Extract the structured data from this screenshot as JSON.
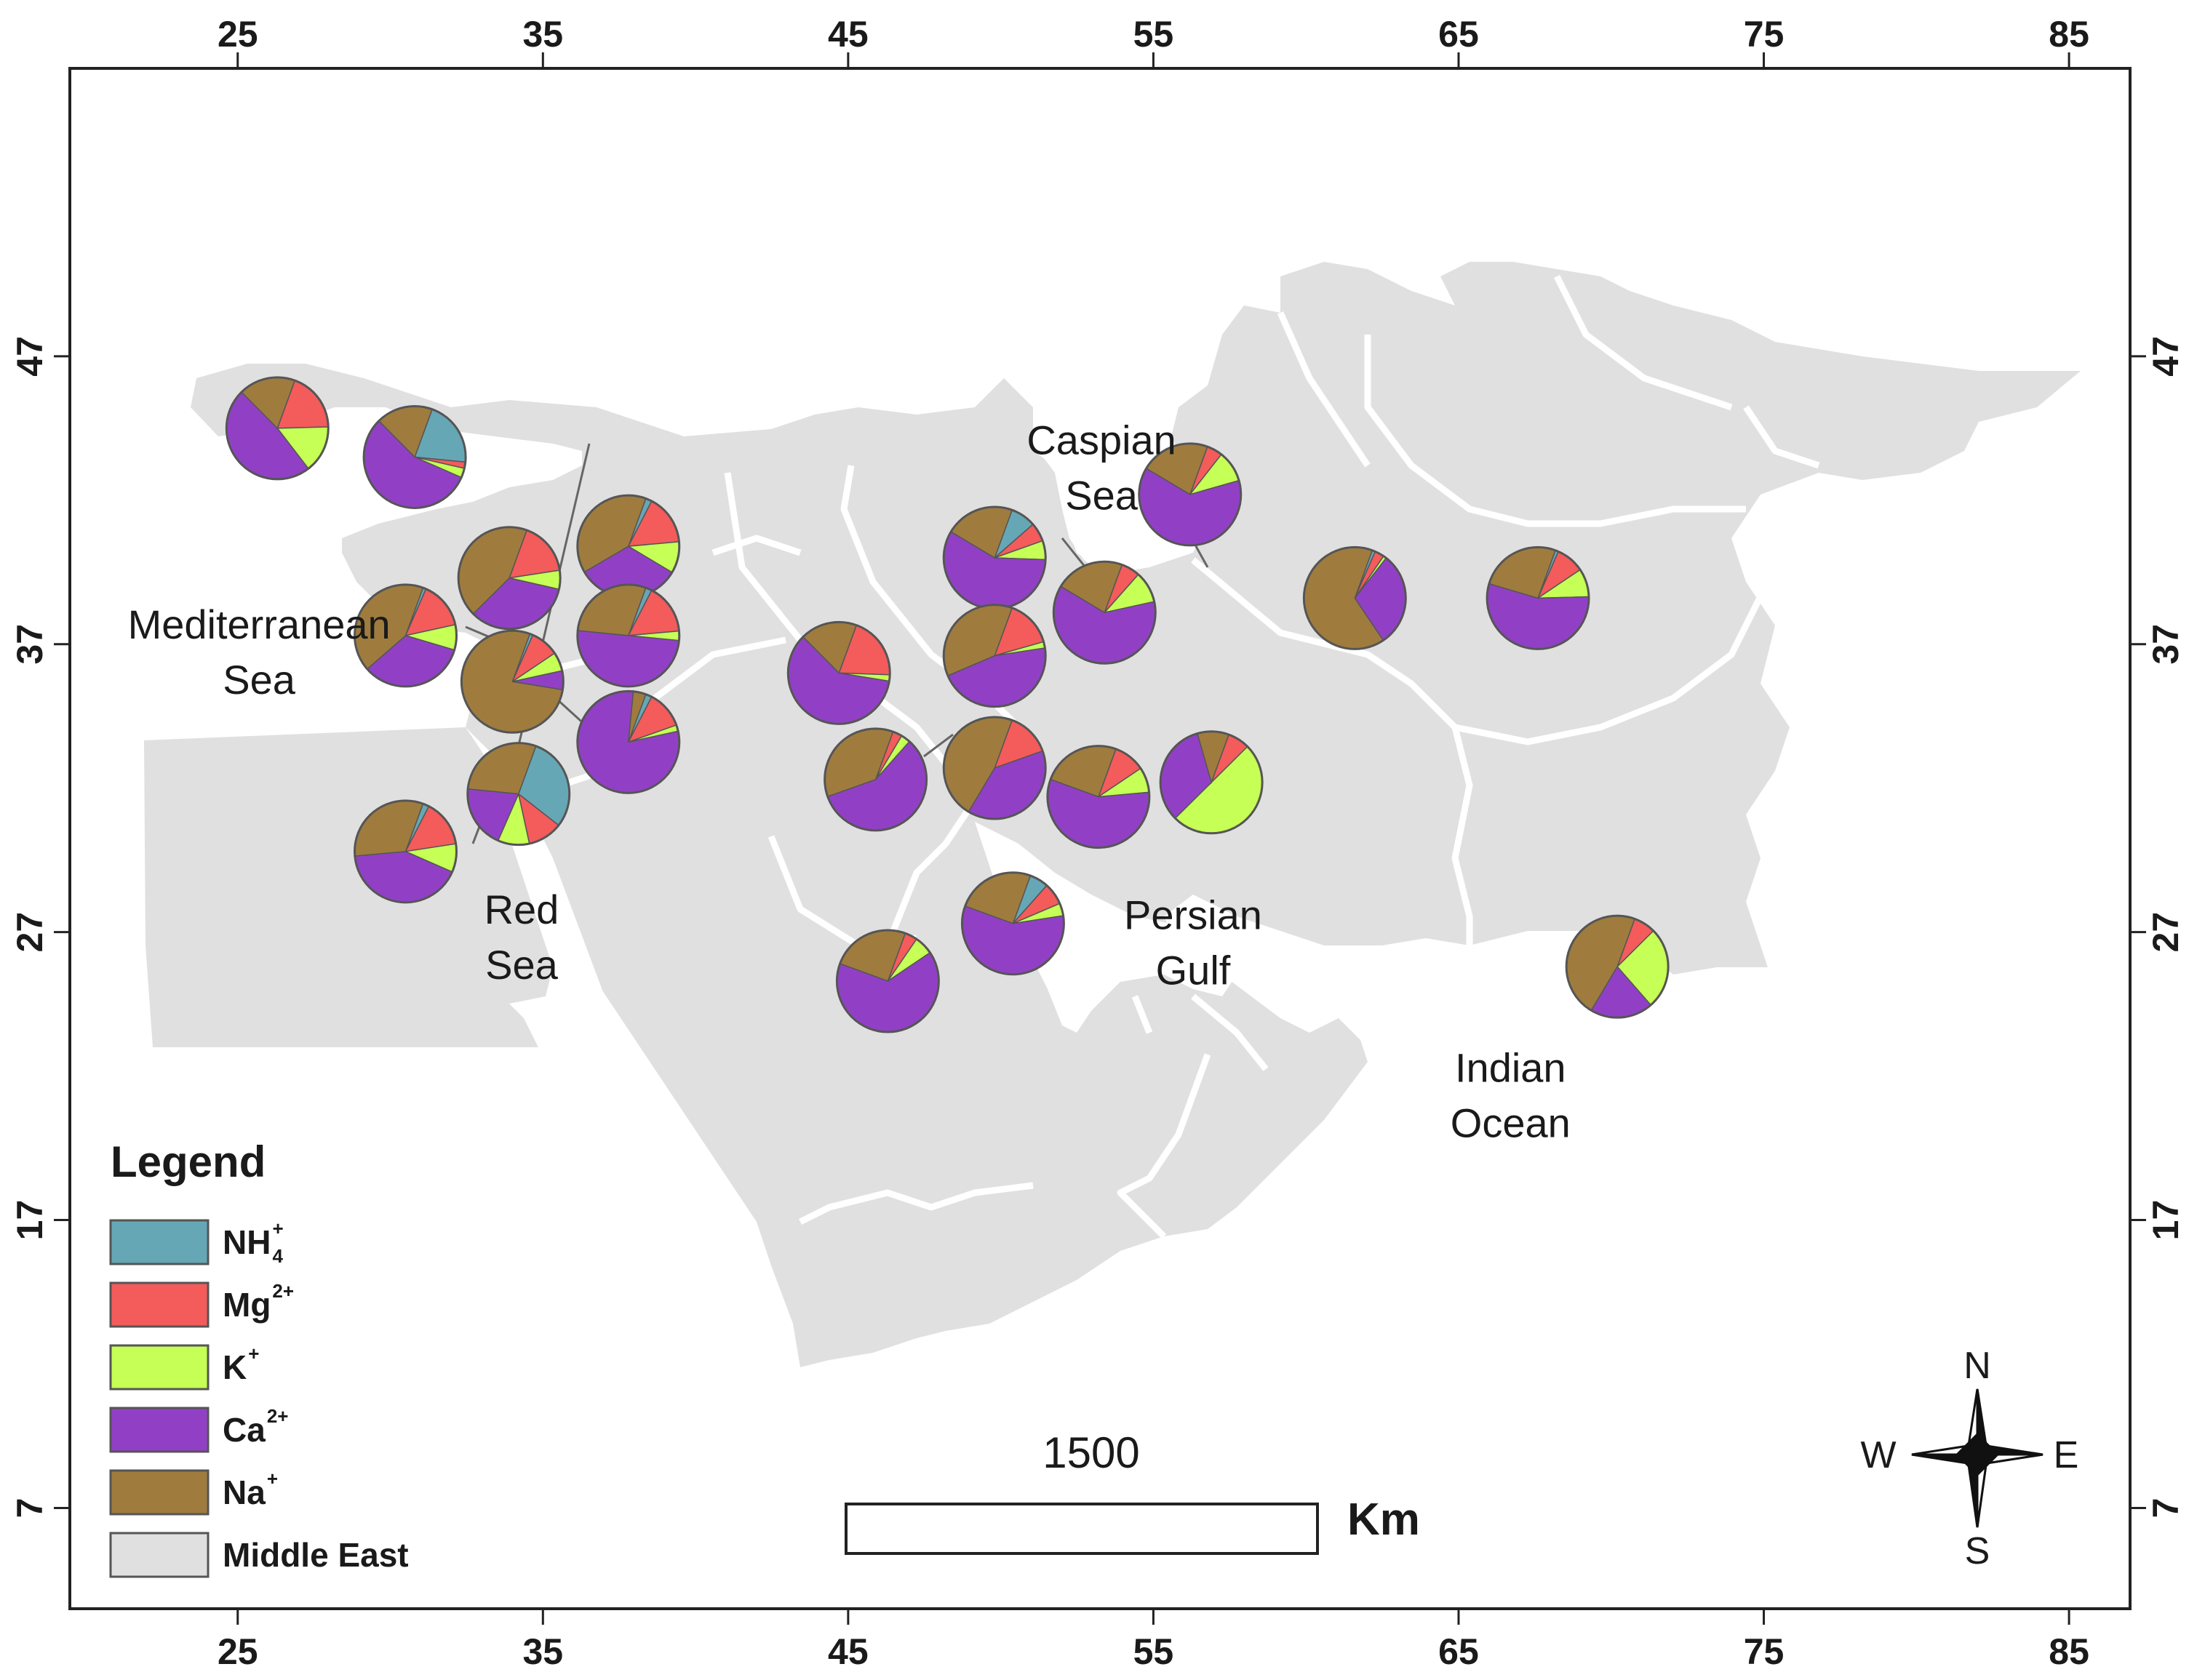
{
  "map": {
    "x_ticks": [
      "25",
      "35",
      "45",
      "55",
      "65",
      "75",
      "85"
    ],
    "y_ticks": [
      "47",
      "37",
      "27",
      "17",
      "7"
    ],
    "x_range": [
      19.5,
      87
    ],
    "y_range": [
      3.5,
      57
    ],
    "land_color": "#e0e0e0",
    "border_color": "#ffffff",
    "places": [
      {
        "id": "caspian",
        "lines": [
          "Caspian",
          "Sea"
        ],
        "lon": 53.3,
        "lat": 43.6
      },
      {
        "id": "mediterranean",
        "lines": [
          "Mediterranean",
          "Sea"
        ],
        "lon": 25.7,
        "lat": 37.2
      },
      {
        "id": "red-sea",
        "lines": [
          "Red",
          "Sea"
        ],
        "lon": 34.3,
        "lat": 27.3
      },
      {
        "id": "persian-gulf",
        "lines": [
          "Persian",
          "Gulf"
        ],
        "lon": 56.3,
        "lat": 27.1
      },
      {
        "id": "indian-ocean",
        "lines": [
          "Indian",
          "Ocean"
        ],
        "lon": 66.7,
        "lat": 21.8
      }
    ]
  },
  "series_colors": {
    "NH4": "#66a7b6",
    "Mg": "#f45b5b",
    "K": "#c6ff55",
    "Ca": "#9140c6",
    "Na": "#9f7c3e"
  },
  "chart_data": {
    "type": "map-pie",
    "order": [
      "NH4",
      "Mg",
      "K",
      "Ca",
      "Na"
    ],
    "sites": [
      {
        "lon": 26.3,
        "lat": 44.5,
        "values": [
          0,
          19,
          15,
          48,
          18
        ]
      },
      {
        "lon": 30.8,
        "lat": 43.5,
        "values": [
          21,
          2,
          3,
          56,
          18
        ]
      },
      {
        "lon": 33.9,
        "lat": 39.3,
        "values": [
          0,
          17,
          6,
          34,
          43
        ]
      },
      {
        "lon": 37.8,
        "lat": 40.4,
        "values": [
          2,
          16,
          10,
          33,
          39
        ]
      },
      {
        "lon": 30.5,
        "lat": 37.3,
        "values": [
          1,
          15,
          8,
          34,
          42
        ]
      },
      {
        "lon": 37.8,
        "lat": 37.3,
        "values": [
          2,
          16,
          3,
          50,
          29
        ]
      },
      {
        "lon": 34.0,
        "lat": 35.7,
        "values": [
          1,
          9,
          6,
          6,
          78
        ]
      },
      {
        "lon": 37.8,
        "lat": 33.6,
        "values": [
          2,
          12,
          2,
          80,
          4
        ]
      },
      {
        "lon": 34.2,
        "lat": 31.8,
        "values": [
          30,
          11,
          10,
          20,
          29
        ]
      },
      {
        "lon": 30.5,
        "lat": 29.8,
        "values": [
          2,
          15,
          9,
          42,
          32
        ]
      },
      {
        "lon": 44.7,
        "lat": 36.0,
        "values": [
          0,
          20,
          2,
          60,
          18
        ]
      },
      {
        "lon": 45.9,
        "lat": 32.3,
        "values": [
          0,
          3,
          3,
          58,
          36
        ]
      },
      {
        "lon": 49.8,
        "lat": 32.7,
        "values": [
          0,
          14,
          0,
          39,
          47
        ]
      },
      {
        "lon": 49.8,
        "lat": 40.0,
        "values": [
          8,
          6,
          6,
          58,
          22
        ]
      },
      {
        "lon": 49.8,
        "lat": 36.6,
        "values": [
          0,
          15,
          2,
          46,
          37
        ]
      },
      {
        "lon": 53.4,
        "lat": 38.1,
        "values": [
          0,
          6,
          10,
          62,
          22
        ]
      },
      {
        "lon": 56.2,
        "lat": 42.2,
        "values": [
          0,
          5,
          10,
          63,
          22
        ]
      },
      {
        "lon": 53.2,
        "lat": 31.7,
        "values": [
          0,
          10,
          8,
          57,
          25
        ]
      },
      {
        "lon": 56.9,
        "lat": 32.2,
        "values": [
          0,
          7,
          50,
          33,
          10
        ]
      },
      {
        "lon": 61.6,
        "lat": 38.6,
        "values": [
          1,
          3,
          1,
          30,
          65
        ]
      },
      {
        "lon": 67.6,
        "lat": 38.6,
        "values": [
          1,
          9,
          9,
          55,
          26
        ]
      },
      {
        "lon": 50.4,
        "lat": 27.3,
        "values": [
          6,
          7,
          4,
          58,
          25
        ]
      },
      {
        "lon": 46.3,
        "lat": 25.3,
        "values": [
          0,
          4,
          6,
          65,
          25
        ]
      },
      {
        "lon": 70.2,
        "lat": 25.8,
        "values": [
          0,
          7,
          26,
          20,
          47
        ]
      }
    ]
  },
  "legend": {
    "title": "Legend",
    "items": [
      {
        "key": "NH4",
        "label": "NH",
        "sub": "4",
        "sup": "+"
      },
      {
        "key": "Mg",
        "label": "Mg",
        "sub": "",
        "sup": "2+"
      },
      {
        "key": "K",
        "label": "K",
        "sub": "",
        "sup": "+"
      },
      {
        "key": "Ca",
        "label": "Ca",
        "sub": "",
        "sup": "2+"
      },
      {
        "key": "Na",
        "label": "Na",
        "sub": "",
        "sup": "+"
      },
      {
        "key": "land",
        "label": "Middle East",
        "sub": "",
        "sup": ""
      }
    ]
  },
  "scale_bar": {
    "value": "1500",
    "unit": "Km"
  },
  "compass": {
    "n": "N",
    "s": "S",
    "e": "E",
    "w": "W"
  }
}
